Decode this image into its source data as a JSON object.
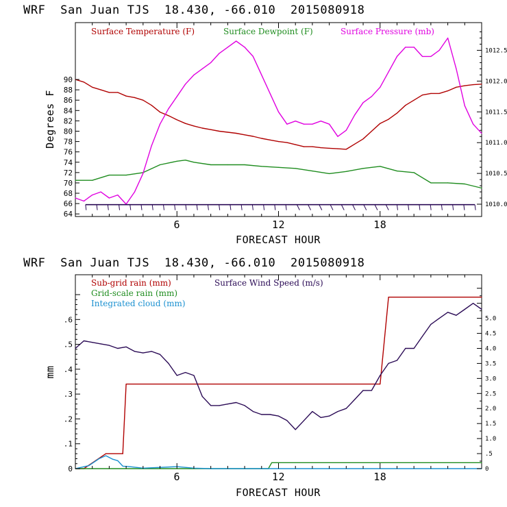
{
  "charts": {
    "top": {
      "title": "WRF  San Juan TJS  18.430, -66.010  2015080918",
      "xlabel": "FORECAST HOUR",
      "ylabel": "Degrees F",
      "x_ticks": [
        "6",
        "12",
        "18"
      ],
      "y_ticks": [
        "64",
        "66",
        "68",
        "70",
        "72",
        "74",
        "76",
        "78",
        "80",
        "82",
        "84",
        "86",
        "88",
        "90"
      ],
      "y2_ticks": [
        "1010.0",
        "1010.5",
        "1011.0",
        "1011.5",
        "1012.0",
        "1012.5"
      ],
      "legend": [
        "Surface Temperature (F)",
        "Surface Dewpoint (F)",
        "Surface Pressure (mb)"
      ]
    },
    "bottom": {
      "title": "WRF  San Juan TJS  18.430, -66.010  2015080918",
      "xlabel": "FORECAST HOUR",
      "ylabel": "mm",
      "x_ticks": [
        "6",
        "12",
        "18"
      ],
      "y_ticks": [
        "0",
        ".1",
        ".2",
        ".3",
        ".4",
        ".5",
        ".6"
      ],
      "y2_ticks": [
        "0",
        ".5",
        "1.0",
        "1.5",
        "2.0",
        "2.5",
        "3.0",
        "3.5",
        "4.0",
        "4.5",
        "5.0"
      ],
      "legend": [
        "Sub-grid rain (mm)",
        "Surface Wind Speed (m/s)",
        "Grid-scale rain (mm)",
        "Integrated cloud (mm)"
      ]
    }
  },
  "colors": {
    "temperature": "#b00000",
    "dewpoint": "#1e8c1e",
    "pressure": "#e000e0",
    "wind": "#2a0a55",
    "subgrid_rain": "#b00000",
    "gridscale_rain": "#1e8c1e",
    "cloud": "#1a90d0",
    "axis": "#000000"
  },
  "chart_data": [
    {
      "type": "line",
      "title": "WRF  San Juan TJS  18.430, -66.010  2015080918",
      "xlabel": "FORECAST HOUR",
      "ylabel": "Degrees F",
      "y2label": "",
      "xlim": [
        0,
        24
      ],
      "ylim": [
        63.5,
        101
      ],
      "y2lim": [
        1009.8,
        1012.95
      ],
      "grid": false,
      "legend": "top",
      "series": [
        {
          "name": "Surface Temperature (F)",
          "axis": "left",
          "color": "#b00000",
          "x": [
            0,
            0.5,
            1,
            1.5,
            2,
            2.5,
            3,
            3.5,
            4,
            4.5,
            5,
            5.5,
            6,
            6.5,
            7,
            7.5,
            8,
            8.5,
            9,
            9.5,
            10,
            10.5,
            11,
            11.5,
            12,
            12.5,
            13,
            13.5,
            14,
            14.5,
            15,
            15.5,
            16,
            16.5,
            17,
            17.5,
            18,
            18.5,
            19,
            19.5,
            20,
            20.5,
            21,
            21.5,
            22,
            22.5,
            23,
            23.5,
            24
          ],
          "y": [
            90,
            89.5,
            88.5,
            88,
            87.5,
            87.5,
            86.8,
            86.5,
            86,
            85,
            83.7,
            83,
            82.2,
            81.5,
            81,
            80.6,
            80.3,
            80,
            79.8,
            79.6,
            79.3,
            79,
            78.6,
            78.3,
            78,
            77.8,
            77.4,
            77,
            77,
            76.8,
            76.7,
            76.6,
            76.5,
            77.5,
            78.5,
            80,
            81.5,
            82.3,
            83.5,
            85,
            86,
            87,
            87.3,
            87.3,
            87.8,
            88.5,
            88.8,
            89,
            89.1
          ]
        },
        {
          "name": "Surface Dewpoint (F)",
          "axis": "left",
          "color": "#1e8c1e",
          "x": [
            0,
            1,
            2,
            3,
            4,
            5,
            6,
            6.5,
            7,
            8,
            9,
            10,
            11,
            12,
            13,
            14,
            15,
            16,
            17,
            18,
            19,
            20,
            21,
            22,
            23,
            24
          ],
          "y": [
            70.5,
            70.5,
            71.5,
            71.5,
            72,
            73.5,
            74.2,
            74.4,
            74,
            73.5,
            73.5,
            73.5,
            73.2,
            73,
            72.8,
            72.3,
            71.8,
            72.2,
            72.8,
            73.2,
            72.3,
            72,
            70,
            70,
            69.8,
            69
          ]
        },
        {
          "name": "Surface Pressure (mb)",
          "axis": "right",
          "color": "#e000e0",
          "x": [
            0,
            0.5,
            1,
            1.5,
            2,
            2.5,
            3,
            3.5,
            4,
            4.5,
            5,
            5.5,
            6,
            6.5,
            7,
            7.5,
            8,
            8.5,
            9,
            9.5,
            10,
            10.5,
            11,
            11.5,
            12,
            12.5,
            13,
            13.5,
            14,
            14.5,
            15,
            15.5,
            16,
            16.5,
            17,
            17.5,
            18,
            18.5,
            19,
            19.5,
            20,
            20.5,
            21,
            21.5,
            22,
            22.5,
            23,
            23.5,
            24
          ],
          "y": [
            1010.1,
            1010.05,
            1010.15,
            1010.2,
            1010.1,
            1010.15,
            1010.0,
            1010.2,
            1010.5,
            1010.95,
            1011.3,
            1011.55,
            1011.75,
            1011.95,
            1012.1,
            1012.2,
            1012.3,
            1012.45,
            1012.55,
            1012.65,
            1012.55,
            1012.4,
            1012.1,
            1011.8,
            1011.5,
            1011.3,
            1011.35,
            1011.3,
            1011.3,
            1011.35,
            1011.3,
            1011.1,
            1011.2,
            1011.45,
            1011.65,
            1011.75,
            1011.9,
            1012.15,
            1012.4,
            1012.55,
            1012.55,
            1012.4,
            1012.4,
            1012.5,
            1012.7,
            1012.2,
            1011.6,
            1011.3,
            1011.15
          ]
        }
      ],
      "wind_barbs": {
        "y": 65.8,
        "x_range": [
          0.6,
          23.6
        ],
        "count": 36
      }
    },
    {
      "type": "line",
      "title": "WRF  San Juan TJS  18.430, -66.010  2015080918",
      "xlabel": "FORECAST HOUR",
      "ylabel": "mm",
      "xlim": [
        0,
        24
      ],
      "ylim": [
        0,
        0.78
      ],
      "y2lim": [
        0,
        6.45
      ],
      "grid": false,
      "legend": "top-left",
      "series": [
        {
          "name": "Sub-grid rain (mm)",
          "axis": "left",
          "color": "#b00000",
          "x": [
            0,
            0.5,
            1.8,
            2.8,
            3,
            18,
            18.5,
            24
          ],
          "y": [
            0,
            0,
            0.06,
            0.06,
            0.34,
            0.34,
            0.69,
            0.69
          ]
        },
        {
          "name": "Grid-scale rain (mm)",
          "axis": "left",
          "color": "#1e8c1e",
          "x": [
            0,
            11.4,
            11.6,
            24
          ],
          "y": [
            0,
            0,
            0.024,
            0.024
          ]
        },
        {
          "name": "Integrated cloud (mm)",
          "axis": "left",
          "color": "#1a90d0",
          "x": [
            0,
            0.8,
            1.4,
            1.8,
            2.2,
            2.5,
            2.8,
            3.2,
            4,
            6,
            7,
            8,
            12,
            24
          ],
          "y": [
            0,
            0.012,
            0.04,
            0.052,
            0.038,
            0.032,
            0.01,
            0.008,
            0.002,
            0.008,
            0.002,
            0,
            0,
            0
          ]
        },
        {
          "name": "Surface Wind Speed (m/s)",
          "axis": "right",
          "color": "#2a0a55",
          "x": [
            0,
            0.5,
            1,
            1.5,
            2,
            2.5,
            3,
            3.5,
            4,
            4.5,
            5,
            5.5,
            6,
            6.5,
            7,
            7.5,
            8,
            8.5,
            9,
            9.5,
            10,
            10.5,
            11,
            11.5,
            12,
            12.5,
            13,
            13.5,
            14,
            14.5,
            15,
            15.5,
            16,
            16.5,
            17,
            17.5,
            18,
            18.5,
            19,
            19.5,
            20,
            20.5,
            21,
            21.5,
            22,
            22.5,
            23,
            23.5,
            24
          ],
          "y": [
            4.0,
            4.25,
            4.2,
            4.15,
            4.1,
            4.0,
            4.05,
            3.9,
            3.85,
            3.9,
            3.8,
            3.5,
            3.1,
            3.2,
            3.1,
            2.4,
            2.1,
            2.1,
            2.15,
            2.2,
            2.1,
            1.9,
            1.8,
            1.8,
            1.75,
            1.6,
            1.3,
            1.6,
            1.9,
            1.7,
            1.75,
            1.9,
            2.0,
            2.3,
            2.6,
            2.6,
            3.1,
            3.5,
            3.6,
            4.0,
            4.0,
            4.4,
            4.8,
            5.0,
            5.2,
            5.1,
            5.3,
            5.5,
            5.3
          ]
        }
      ]
    }
  ]
}
